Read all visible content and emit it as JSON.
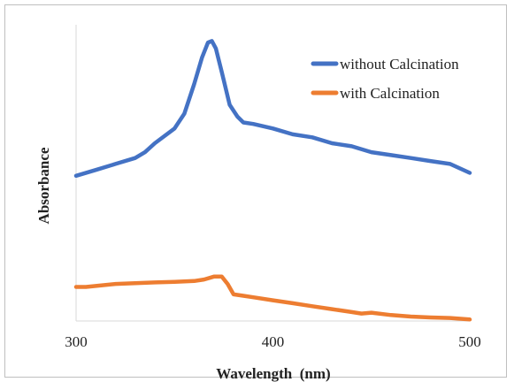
{
  "chart_data": {
    "type": "line",
    "xlabel": "Wavelength  (nm)",
    "ylabel": "Absorbance",
    "xlim": [
      300,
      500
    ],
    "x_ticks": [
      "300",
      "400",
      "500"
    ],
    "y_ticks_shown": false,
    "grid": false,
    "legend_position": "top-right",
    "series": [
      {
        "name": "without Calcination",
        "color": "#4472C4",
        "points": [
          [
            300,
            0.49
          ],
          [
            310,
            0.51
          ],
          [
            320,
            0.53
          ],
          [
            330,
            0.55
          ],
          [
            335,
            0.57
          ],
          [
            340,
            0.6
          ],
          [
            350,
            0.65
          ],
          [
            355,
            0.7
          ],
          [
            360,
            0.8
          ],
          [
            364,
            0.89
          ],
          [
            367,
            0.94
          ],
          [
            369,
            0.945
          ],
          [
            371,
            0.92
          ],
          [
            374,
            0.84
          ],
          [
            378,
            0.73
          ],
          [
            382,
            0.69
          ],
          [
            385,
            0.67
          ],
          [
            390,
            0.665
          ],
          [
            400,
            0.65
          ],
          [
            410,
            0.63
          ],
          [
            420,
            0.62
          ],
          [
            430,
            0.6
          ],
          [
            440,
            0.59
          ],
          [
            450,
            0.57
          ],
          [
            460,
            0.56
          ],
          [
            470,
            0.55
          ],
          [
            480,
            0.54
          ],
          [
            490,
            0.53
          ],
          [
            500,
            0.5
          ]
        ]
      },
      {
        "name": "with Calcination",
        "color": "#ED7D31",
        "points": [
          [
            300,
            0.115
          ],
          [
            305,
            0.115
          ],
          [
            320,
            0.125
          ],
          [
            340,
            0.13
          ],
          [
            350,
            0.132
          ],
          [
            360,
            0.135
          ],
          [
            365,
            0.14
          ],
          [
            370,
            0.15
          ],
          [
            374,
            0.15
          ],
          [
            377,
            0.125
          ],
          [
            380,
            0.09
          ],
          [
            385,
            0.085
          ],
          [
            390,
            0.08
          ],
          [
            400,
            0.07
          ],
          [
            410,
            0.06
          ],
          [
            420,
            0.05
          ],
          [
            430,
            0.04
          ],
          [
            440,
            0.03
          ],
          [
            445,
            0.025
          ],
          [
            450,
            0.028
          ],
          [
            460,
            0.02
          ],
          [
            470,
            0.015
          ],
          [
            480,
            0.012
          ],
          [
            490,
            0.01
          ],
          [
            500,
            0.005
          ]
        ]
      }
    ]
  }
}
